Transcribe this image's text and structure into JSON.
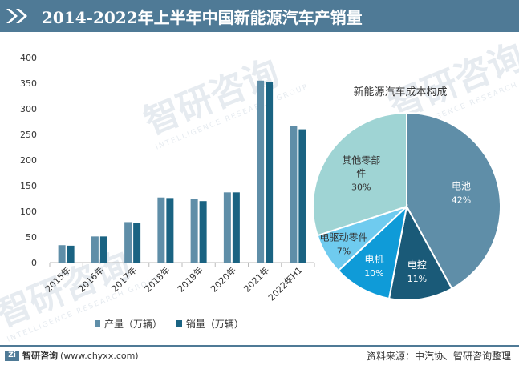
{
  "header": {
    "title": "2014-2022年上半年中国新能源汽车产销量"
  },
  "watermark": {
    "brand": "智研咨询",
    "sub": "INTELLIGENCE RESEARCH GROUP"
  },
  "colors": {
    "header": "#4f7a96",
    "production": "#5f8ea8",
    "sales": "#1a6382"
  },
  "chart_data": [
    {
      "type": "bar",
      "categories": [
        "2015年",
        "2016年",
        "2017年",
        "2018年",
        "2019年",
        "2020年",
        "2021年",
        "2022年H1"
      ],
      "series": [
        {
          "name": "产量（万辆）",
          "values": [
            34,
            51,
            79,
            127,
            124,
            137,
            355,
            266
          ]
        },
        {
          "name": "销量（万辆）",
          "values": [
            33,
            51,
            78,
            126,
            120,
            137,
            352,
            260
          ]
        }
      ],
      "y_ticks": [
        0,
        50,
        100,
        150,
        200,
        250,
        300,
        350,
        400
      ],
      "ylim": [
        0,
        400
      ],
      "legend": "bottom"
    },
    {
      "type": "pie",
      "title": "新能源汽车成本构成",
      "slices": [
        {
          "label": "电池",
          "value": 42,
          "display": "42%",
          "color": "#5f8ea8"
        },
        {
          "label": "电控",
          "value": 11,
          "display": "11%",
          "color": "#1a5a78"
        },
        {
          "label": "电机",
          "value": 10,
          "display": "10%",
          "color": "#0f9bd8"
        },
        {
          "label": "电驱动零件",
          "value": 7,
          "display": "7%",
          "color": "#6fcbef"
        },
        {
          "label": "其他零部件",
          "value": 30,
          "display": "30%",
          "color": "#9fd4d4"
        }
      ]
    }
  ],
  "footer": {
    "logo": "Zi",
    "brand": "智研咨询",
    "url": "(www.chyxx.com)",
    "source": "资料来源：中汽协、智研咨询整理"
  }
}
